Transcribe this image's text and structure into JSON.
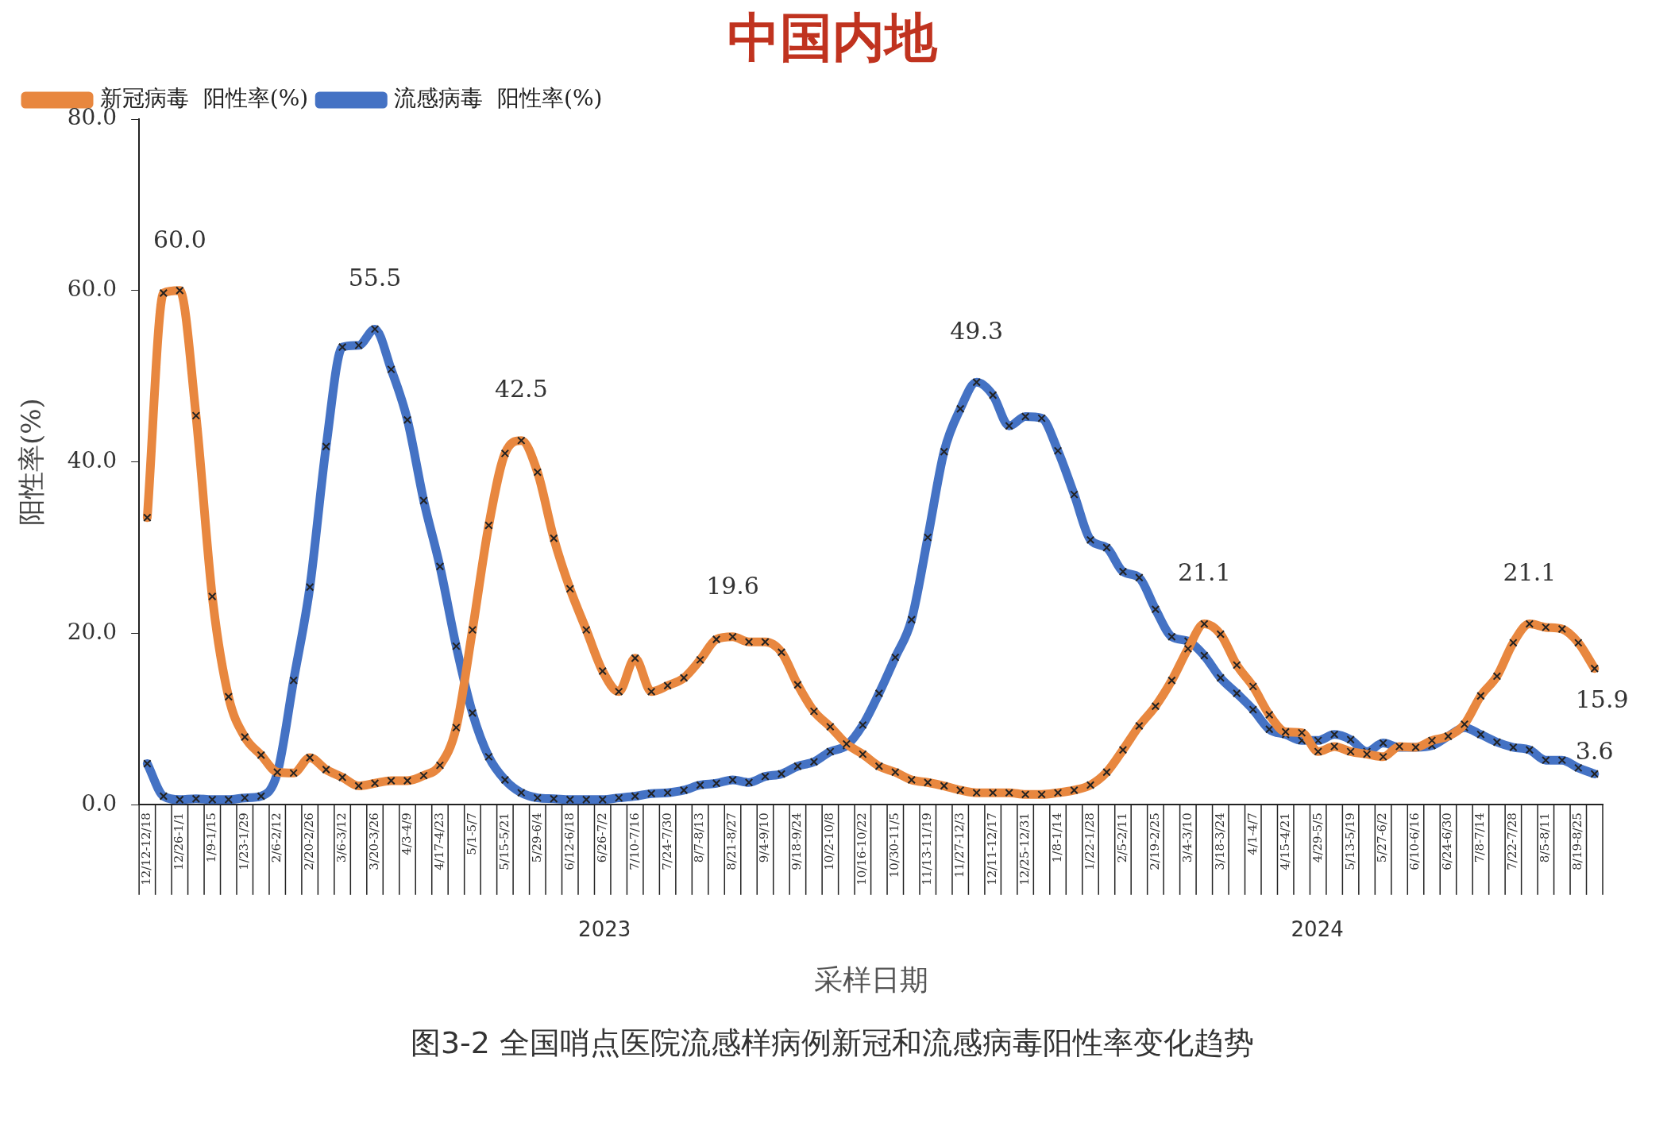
{
  "chart_data": {
    "type": "line",
    "title": "中国内地",
    "xlabel": "采样日期",
    "ylabel": "阳性率(%)",
    "categories": [
      "12/12-12/18",
      null,
      "12/26-1/1",
      null,
      "1/9-1/15",
      null,
      "1/23-1/29",
      null,
      "2/6-2/12",
      null,
      "2/20-2/26",
      null,
      "3/6-3/12",
      null,
      "3/20-3/26",
      null,
      "4/3-4/9",
      null,
      "4/17-4/23",
      null,
      "5/1-5/7",
      null,
      "5/15-5/21",
      null,
      "5/29-6/4",
      null,
      "6/12-6/18",
      null,
      "6/26-7/2",
      null,
      "7/10-7/16",
      null,
      "7/24-7/30",
      null,
      "8/7-8/13",
      null,
      "8/21-8/27",
      null,
      "9/4-9/10",
      null,
      "9/18-9/24",
      null,
      "10/2-10/8",
      null,
      "10/16-10/22",
      null,
      "10/30-11/5",
      null,
      "11/13-11/19",
      null,
      "11/27-12/3",
      null,
      "12/11-12/17",
      null,
      "12/25-12/31",
      null,
      "1/8-1/14",
      null,
      "1/22-1/28",
      null,
      "2/5-2/11",
      null,
      "2/19-2/25",
      null,
      "3/4-3/10",
      null,
      "3/18-3/24",
      null,
      "4/1-4/7",
      null,
      "4/15-4/21",
      null,
      "4/29-5/5",
      null,
      "5/13-5/19",
      null,
      "5/27-6/2",
      null,
      "6/10-6/16",
      null,
      "6/24-6/30",
      null,
      "7/8-7/14",
      null,
      "7/22-7/28",
      null,
      "8/5-8/11",
      null,
      "8/19-8/25",
      null
    ],
    "series": [
      {
        "name": "新冠病毒  阳性率(%)",
        "color": "#e8873f",
        "values": [
          33.5,
          59.7,
          60.0,
          45.4,
          24.3,
          12.6,
          7.9,
          5.8,
          3.8,
          3.7,
          5.5,
          4.1,
          3.2,
          2.2,
          2.5,
          2.8,
          2.8,
          3.4,
          4.6,
          9.0,
          20.4,
          32.6,
          41.0,
          42.5,
          38.8,
          31.1,
          25.2,
          20.4,
          15.6,
          13.2,
          17.1,
          13.2,
          13.9,
          14.8,
          16.9,
          19.3,
          19.6,
          19.0,
          19.0,
          17.8,
          14.0,
          10.9,
          9.1,
          7.1,
          5.9,
          4.5,
          3.8,
          2.9,
          2.6,
          2.2,
          1.7,
          1.4,
          1.4,
          1.4,
          1.2,
          1.2,
          1.4,
          1.7,
          2.3,
          3.8,
          6.4,
          9.2,
          11.5,
          14.5,
          18.2,
          21.1,
          19.9,
          16.3,
          13.8,
          10.5,
          8.5,
          8.4,
          6.2,
          6.8,
          6.2,
          5.9,
          5.6,
          6.8,
          6.7,
          7.5,
          8.0,
          9.4,
          12.7,
          15.0,
          18.9,
          21.1,
          20.7,
          20.5,
          18.9,
          15.9
        ],
        "value_labels": [
          null,
          null,
          "60.0",
          null,
          null,
          null,
          null,
          null,
          null,
          null,
          null,
          null,
          null,
          null,
          null,
          null,
          null,
          null,
          null,
          null,
          null,
          null,
          null,
          "42.5",
          null,
          null,
          null,
          null,
          null,
          null,
          null,
          null,
          null,
          null,
          null,
          null,
          "19.6",
          null,
          null,
          null,
          null,
          null,
          null,
          null,
          null,
          null,
          null,
          null,
          null,
          null,
          null,
          null,
          null,
          null,
          null,
          null,
          null,
          null,
          null,
          null,
          null,
          null,
          null,
          null,
          null,
          "21.1",
          null,
          null,
          null,
          null,
          null,
          null,
          null,
          null,
          null,
          null,
          null,
          null,
          null,
          null,
          null,
          null,
          null,
          null,
          null,
          "21.1",
          null,
          null,
          null,
          "15.9"
        ]
      },
      {
        "name": "流感病毒  阳性率(%)",
        "color": "#4472c4",
        "values": [
          4.8,
          1.0,
          0.6,
          0.7,
          0.6,
          0.6,
          0.8,
          1.0,
          3.7,
          14.5,
          25.4,
          41.8,
          53.4,
          53.6,
          55.5,
          50.8,
          44.9,
          35.5,
          27.8,
          18.5,
          10.7,
          5.6,
          2.9,
          1.4,
          0.8,
          0.7,
          0.6,
          0.6,
          0.6,
          0.8,
          1.0,
          1.3,
          1.4,
          1.7,
          2.3,
          2.5,
          2.9,
          2.6,
          3.3,
          3.6,
          4.5,
          5.0,
          6.2,
          6.9,
          9.3,
          13.0,
          17.2,
          21.6,
          31.2,
          41.2,
          46.2,
          49.3,
          47.8,
          44.2,
          45.3,
          45.1,
          41.3,
          36.2,
          30.9,
          30.0,
          27.2,
          26.5,
          22.8,
          19.6,
          19.1,
          17.4,
          14.8,
          13.0,
          11.1,
          8.8,
          8.2,
          7.5,
          7.5,
          8.2,
          7.6,
          6.2,
          7.2,
          6.7,
          6.7,
          6.9,
          8.0,
          9.0,
          8.2,
          7.3,
          6.7,
          6.4,
          5.2,
          5.2,
          4.3,
          3.6
        ],
        "value_labels": [
          null,
          null,
          null,
          null,
          null,
          null,
          null,
          null,
          null,
          null,
          null,
          null,
          null,
          null,
          "55.5",
          null,
          null,
          null,
          null,
          null,
          null,
          null,
          null,
          null,
          null,
          null,
          null,
          null,
          null,
          null,
          null,
          null,
          null,
          null,
          null,
          null,
          null,
          null,
          null,
          null,
          null,
          null,
          null,
          null,
          null,
          null,
          null,
          null,
          null,
          null,
          null,
          "49.3",
          null,
          null,
          null,
          null,
          null,
          null,
          null,
          null,
          null,
          null,
          null,
          null,
          null,
          null,
          null,
          null,
          null,
          null,
          null,
          null,
          null,
          null,
          null,
          null,
          null,
          null,
          null,
          null,
          null,
          null,
          null,
          null,
          null,
          null,
          null,
          null,
          null,
          "3.6"
        ]
      }
    ],
    "ylim": [
      0,
      80
    ],
    "yticks": [
      {
        "value": 0,
        "label": "0.0"
      },
      {
        "value": 20,
        "label": "20.0"
      },
      {
        "value": 40,
        "label": "40.0"
      },
      {
        "value": 60,
        "label": "60.0"
      },
      {
        "value": 80,
        "label": "80.0"
      }
    ],
    "grid": false,
    "legend": "top left",
    "marker": "cross",
    "line_style": "solid",
    "annotations": [
      "2023",
      "2024",
      "图3-2 全国哨点医院流感样病例新冠和流感病毒阳性率变化趋势"
    ]
  }
}
